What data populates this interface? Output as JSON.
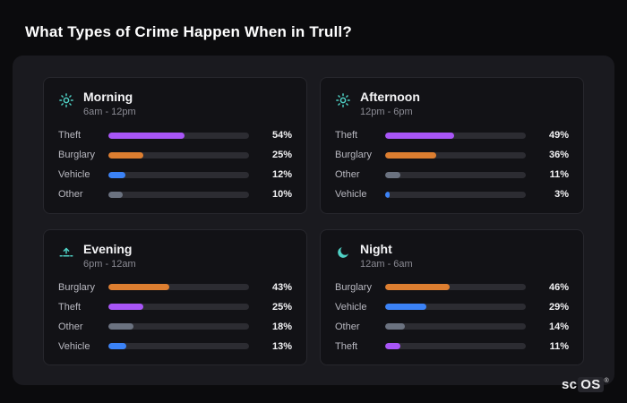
{
  "page": {
    "title": "What Types of Crime Happen When in Trull?"
  },
  "logo": {
    "text_left": "sc",
    "text_right": "OS",
    "mark": "®"
  },
  "colors": {
    "theft": "#a855f7",
    "burglary": "#dd7e30",
    "vehicle": "#3b82f6",
    "other": "#6b7280",
    "icon_accent": "#4fd1c5"
  },
  "chart_data": [
    {
      "type": "bar",
      "title": "Morning",
      "subtitle": "6am - 12pm",
      "icon": "sun-icon",
      "xlim": [
        0,
        100
      ],
      "categories": [
        "Theft",
        "Burglary",
        "Vehicle",
        "Other"
      ],
      "values": [
        54,
        25,
        12,
        10
      ],
      "rows": [
        {
          "label": "Theft",
          "value": 54,
          "pct": "54%",
          "color": "#a855f7"
        },
        {
          "label": "Burglary",
          "value": 25,
          "pct": "25%",
          "color": "#dd7e30"
        },
        {
          "label": "Vehicle",
          "value": 12,
          "pct": "12%",
          "color": "#3b82f6"
        },
        {
          "label": "Other",
          "value": 10,
          "pct": "10%",
          "color": "#6b7280"
        }
      ]
    },
    {
      "type": "bar",
      "title": "Afternoon",
      "subtitle": "12pm - 6pm",
      "icon": "sun-icon",
      "xlim": [
        0,
        100
      ],
      "categories": [
        "Theft",
        "Burglary",
        "Other",
        "Vehicle"
      ],
      "values": [
        49,
        36,
        11,
        3
      ],
      "rows": [
        {
          "label": "Theft",
          "value": 49,
          "pct": "49%",
          "color": "#a855f7"
        },
        {
          "label": "Burglary",
          "value": 36,
          "pct": "36%",
          "color": "#dd7e30"
        },
        {
          "label": "Other",
          "value": 11,
          "pct": "11%",
          "color": "#6b7280"
        },
        {
          "label": "Vehicle",
          "value": 3,
          "pct": "3%",
          "color": "#3b82f6"
        }
      ]
    },
    {
      "type": "bar",
      "title": "Evening",
      "subtitle": "6pm - 12am",
      "icon": "sunset-icon",
      "xlim": [
        0,
        100
      ],
      "categories": [
        "Burglary",
        "Theft",
        "Other",
        "Vehicle"
      ],
      "values": [
        43,
        25,
        18,
        13
      ],
      "rows": [
        {
          "label": "Burglary",
          "value": 43,
          "pct": "43%",
          "color": "#dd7e30"
        },
        {
          "label": "Theft",
          "value": 25,
          "pct": "25%",
          "color": "#a855f7"
        },
        {
          "label": "Other",
          "value": 18,
          "pct": "18%",
          "color": "#6b7280"
        },
        {
          "label": "Vehicle",
          "value": 13,
          "pct": "13%",
          "color": "#3b82f6"
        }
      ]
    },
    {
      "type": "bar",
      "title": "Night",
      "subtitle": "12am - 6am",
      "icon": "moon-icon",
      "xlim": [
        0,
        100
      ],
      "categories": [
        "Burglary",
        "Vehicle",
        "Other",
        "Theft"
      ],
      "values": [
        46,
        29,
        14,
        11
      ],
      "rows": [
        {
          "label": "Burglary",
          "value": 46,
          "pct": "46%",
          "color": "#dd7e30"
        },
        {
          "label": "Vehicle",
          "value": 29,
          "pct": "29%",
          "color": "#3b82f6"
        },
        {
          "label": "Other",
          "value": 14,
          "pct": "14%",
          "color": "#6b7280"
        },
        {
          "label": "Theft",
          "value": 11,
          "pct": "11%",
          "color": "#a855f7"
        }
      ]
    }
  ]
}
